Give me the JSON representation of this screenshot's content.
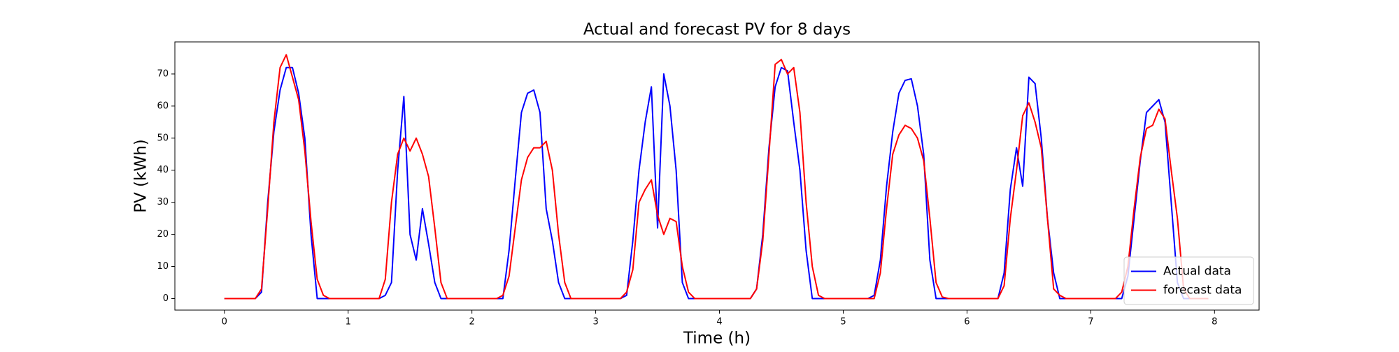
{
  "chart_data": {
    "type": "line",
    "title": "Actual and forecast PV for 8 days",
    "x_label": "Time (h)",
    "y_label": "PV (kWh)",
    "xlim": [
      -0.4,
      8.36
    ],
    "ylim": [
      -3.6,
      80
    ],
    "xticks": [
      0,
      1,
      2,
      3,
      4,
      5,
      6,
      7,
      8
    ],
    "yticks": [
      0,
      10,
      20,
      30,
      40,
      50,
      60,
      70
    ],
    "grid": false,
    "legend": "lower right",
    "x": [
      0,
      0.05,
      0.1,
      0.15,
      0.2,
      0.25,
      0.3,
      0.35,
      0.4,
      0.45,
      0.5,
      0.55,
      0.6,
      0.65,
      0.7,
      0.75,
      0.8,
      0.85,
      0.9,
      0.95,
      1,
      1.05,
      1.1,
      1.15,
      1.2,
      1.25,
      1.3,
      1.35,
      1.4,
      1.45,
      1.5,
      1.55,
      1.6,
      1.65,
      1.7,
      1.75,
      1.8,
      1.85,
      1.9,
      1.95,
      2,
      2.05,
      2.1,
      2.15,
      2.2,
      2.25,
      2.3,
      2.35,
      2.4,
      2.45,
      2.5,
      2.55,
      2.6,
      2.65,
      2.7,
      2.75,
      2.8,
      2.85,
      2.9,
      2.95,
      3,
      3.05,
      3.1,
      3.15,
      3.2,
      3.25,
      3.3,
      3.35,
      3.4,
      3.45,
      3.5,
      3.55,
      3.6,
      3.65,
      3.7,
      3.75,
      3.8,
      3.85,
      3.9,
      3.95,
      4,
      4.05,
      4.1,
      4.15,
      4.2,
      4.25,
      4.3,
      4.35,
      4.4,
      4.45,
      4.5,
      4.55,
      4.6,
      4.65,
      4.7,
      4.75,
      4.8,
      4.85,
      4.9,
      4.95,
      5,
      5.05,
      5.1,
      5.15,
      5.2,
      5.25,
      5.3,
      5.35,
      5.4,
      5.45,
      5.5,
      5.55,
      5.6,
      5.65,
      5.7,
      5.75,
      5.8,
      5.85,
      5.9,
      5.95,
      6,
      6.05,
      6.1,
      6.15,
      6.2,
      6.25,
      6.3,
      6.35,
      6.4,
      6.45,
      6.5,
      6.55,
      6.6,
      6.65,
      6.7,
      6.75,
      6.8,
      6.85,
      6.9,
      6.95,
      7,
      7.05,
      7.1,
      7.15,
      7.2,
      7.25,
      7.3,
      7.35,
      7.4,
      7.45,
      7.5,
      7.55,
      7.6,
      7.65,
      7.7,
      7.75,
      7.8,
      7.85,
      7.9,
      7.95
    ],
    "series": [
      {
        "name": "Actual data",
        "color": "#0000ff",
        "values": [
          0,
          0,
          0,
          0,
          0,
          0,
          2,
          30,
          52,
          65,
          72,
          72,
          64,
          50,
          20,
          0,
          0,
          0,
          0,
          0,
          0,
          0,
          0,
          0,
          0,
          0,
          1,
          5,
          40,
          63,
          20,
          12,
          28,
          17,
          5,
          0,
          0,
          0,
          0,
          0,
          0,
          0,
          0,
          0,
          0,
          0,
          15,
          37,
          58,
          64,
          65,
          58,
          28,
          18,
          5,
          0,
          0,
          0,
          0,
          0,
          0,
          0,
          0,
          0,
          0,
          1,
          18,
          40,
          55,
          66,
          22,
          70,
          60,
          40,
          5,
          0,
          0,
          0,
          0,
          0,
          0,
          0,
          0,
          0,
          0,
          0,
          3,
          20,
          47,
          66,
          72,
          71,
          55,
          40,
          15,
          0,
          0,
          0,
          0,
          0,
          0,
          0,
          0,
          0,
          0,
          1,
          12,
          35,
          52,
          64,
          68,
          68.5,
          60,
          45,
          12,
          0,
          0,
          0,
          0,
          0,
          0,
          0,
          0,
          0,
          0,
          0,
          8,
          34,
          47,
          35,
          69,
          67,
          50,
          25,
          8,
          0,
          0,
          0,
          0,
          0,
          0,
          0,
          0,
          0,
          0,
          0,
          7,
          25,
          43,
          58,
          60,
          62,
          55,
          30,
          5,
          0,
          0,
          0,
          0,
          0
        ]
      },
      {
        "name": "forecast data",
        "color": "#ff0000",
        "values": [
          0,
          0,
          0,
          0,
          0,
          0,
          3,
          28,
          55,
          72,
          76,
          69,
          62,
          46,
          24,
          6,
          1,
          0,
          0,
          0,
          0,
          0,
          0,
          0,
          0,
          0,
          6,
          30,
          45,
          50,
          46,
          50,
          45,
          38,
          22,
          5,
          0,
          0,
          0,
          0,
          0,
          0,
          0,
          0,
          0,
          1,
          7,
          22,
          37,
          44,
          47,
          47,
          49,
          40,
          20,
          5,
          0,
          0,
          0,
          0,
          0,
          0,
          0,
          0,
          0,
          2,
          9,
          30,
          34,
          37,
          26,
          20,
          25,
          24,
          10,
          2,
          0,
          0,
          0,
          0,
          0,
          0,
          0,
          0,
          0,
          0,
          3,
          18,
          45,
          73,
          74.5,
          70,
          72,
          58,
          30,
          10,
          1,
          0,
          0,
          0,
          0,
          0,
          0,
          0,
          0,
          0,
          8,
          28,
          45,
          51,
          54,
          53,
          50,
          43,
          25,
          5,
          0.5,
          0,
          0,
          0,
          0,
          0,
          0,
          0,
          0,
          0,
          4,
          25,
          40,
          57,
          61,
          55,
          47,
          25,
          3,
          1,
          0,
          0,
          0,
          0,
          0,
          0,
          0,
          0,
          0,
          2,
          10,
          28,
          44,
          53,
          54,
          59,
          56,
          40,
          25,
          3,
          0,
          0,
          0,
          0
        ]
      }
    ]
  }
}
